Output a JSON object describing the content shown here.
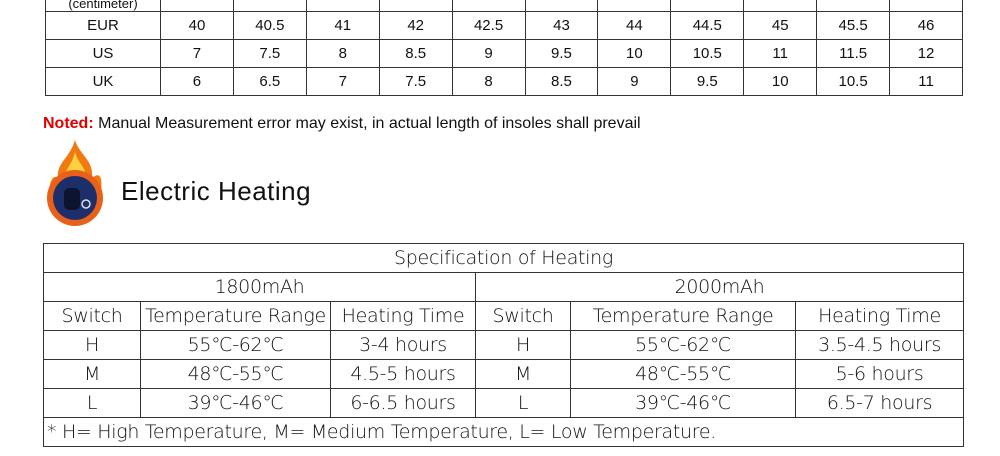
{
  "size_table": {
    "header_partial": "(centimeter)",
    "rows": [
      {
        "label": "EUR",
        "values": [
          40,
          40.5,
          41,
          42,
          42.5,
          43,
          44,
          44.5,
          45,
          45.5,
          46
        ]
      },
      {
        "label": "US",
        "values": [
          7,
          7.5,
          8,
          8.5,
          9,
          9.5,
          10,
          10.5,
          11,
          11.5,
          12
        ]
      },
      {
        "label": "UK",
        "values": [
          6,
          6.5,
          7,
          7.5,
          8,
          8.5,
          9,
          9.5,
          10,
          10.5,
          11
        ]
      }
    ]
  },
  "note": {
    "label": "Noted:",
    "text": "Manual Measurement error may exist, in actual length of insoles shall prevail"
  },
  "heading": "Electric Heating",
  "heating_table": {
    "title": "Specification of Heating",
    "groups": [
      "1800mAh",
      "2000mAh"
    ],
    "headers": [
      "Switch",
      "Temperature Range",
      "Heating Time",
      "Switch",
      "Temperature Range",
      "Heating Time"
    ],
    "rows": [
      [
        "H",
        "55℃-62℃",
        "3-4 hours",
        "H",
        "55℃-62℃",
        "3.5-4.5 hours"
      ],
      [
        "M",
        "48℃-55℃",
        "4.5-5 hours",
        "M",
        "48℃-55℃",
        "5-6 hours"
      ],
      [
        "L",
        "39℃-46℃",
        "6-6.5 hours",
        "L",
        "39℃-46℃",
        "6.5-7 hours"
      ]
    ],
    "footnote": "* H= High Temperature, M= Medium Temperature, L= Low Temperature."
  }
}
